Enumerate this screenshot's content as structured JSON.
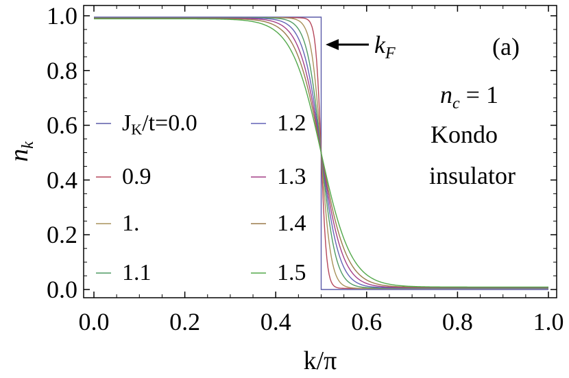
{
  "chart_data": {
    "type": "line",
    "title": "",
    "xlabel": "k/π",
    "ylabel": "n",
    "ylabel_sub": "k",
    "xlim": [
      0.0,
      1.0
    ],
    "ylim": [
      0.0,
      1.0
    ],
    "x_ticks": [
      "0.0",
      "0.2",
      "0.4",
      "0.6",
      "0.8",
      "1.0"
    ],
    "y_ticks": [
      "0.0",
      "0.2",
      "0.4",
      "0.6",
      "0.8",
      "1.0"
    ],
    "grid": false,
    "frame": true,
    "step_position": 0.5,
    "legend_placement": "left, two columns",
    "series": [
      {
        "name": "Jₖ/t=0.0",
        "legend_label": "J",
        "legend_sub": "K",
        "legend_rest": "/t=0.0",
        "color": "#5b5ba8",
        "JK": 0.0,
        "n_low_k": 0.995,
        "n_high_k": 0.0,
        "width": 0.0
      },
      {
        "name": "0.9",
        "legend_label": "0.9",
        "legend_sub": "",
        "legend_rest": "",
        "color": "#b5475a",
        "JK": 0.9,
        "n_low_k": 0.993,
        "n_high_k": 0.004,
        "width": 0.006
      },
      {
        "name": "1.",
        "legend_label": "1.",
        "legend_sub": "",
        "legend_rest": "",
        "color": "#a8925a",
        "JK": 1.0,
        "n_low_k": 0.993,
        "n_high_k": 0.004,
        "width": 0.011
      },
      {
        "name": "1.1",
        "legend_label": "1.1",
        "legend_sub": "",
        "legend_rest": "",
        "color": "#4f9a62",
        "JK": 1.1,
        "n_low_k": 0.993,
        "n_high_k": 0.005,
        "width": 0.016
      },
      {
        "name": "1.2",
        "legend_label": "1.2",
        "legend_sub": "",
        "legend_rest": "",
        "color": "#6262b5",
        "JK": 1.2,
        "n_low_k": 0.992,
        "n_high_k": 0.006,
        "width": 0.02
      },
      {
        "name": "1.3",
        "legend_label": "1.3",
        "legend_sub": "",
        "legend_rest": "",
        "color": "#a43e86",
        "JK": 1.3,
        "n_low_k": 0.991,
        "n_high_k": 0.007,
        "width": 0.024
      },
      {
        "name": "1.4",
        "legend_label": "1.4",
        "legend_sub": "",
        "legend_rest": "",
        "color": "#9a7a4a",
        "JK": 1.4,
        "n_low_k": 0.99,
        "n_high_k": 0.008,
        "width": 0.028
      },
      {
        "name": "1.5",
        "legend_label": "1.5",
        "legend_sub": "",
        "legend_rest": "",
        "color": "#52a84a",
        "JK": 1.5,
        "n_low_k": 0.989,
        "n_high_k": 0.009,
        "width": 0.033
      }
    ],
    "annotations": {
      "kf_label": "k",
      "kf_sub": "F",
      "panel_label": "(a)",
      "nc_label": "n",
      "nc_sub": "c",
      "nc_rest": " = 1",
      "line1": "Kondo",
      "line2": "insulator"
    }
  }
}
